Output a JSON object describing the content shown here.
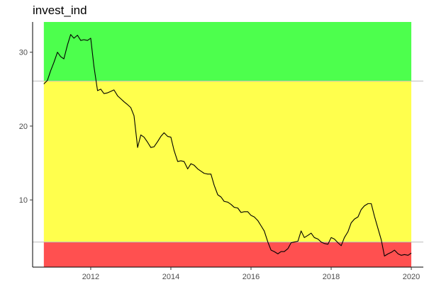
{
  "chart_data": {
    "type": "line",
    "title": "invest_ind",
    "xlabel": "",
    "ylabel": "",
    "xlim": [
      2010.55,
      2020.3
    ],
    "ylim": [
      0.9,
      34.1
    ],
    "x_ticks": [
      2012,
      2014,
      2016,
      2018,
      2020
    ],
    "y_ticks": [
      10,
      20,
      30
    ],
    "grid": false,
    "bands": [
      {
        "from": 0.9,
        "to": 4.3,
        "color": "#ff5050"
      },
      {
        "from": 4.3,
        "to": 26.1,
        "color": "#ffff4d"
      },
      {
        "from": 26.1,
        "to": 34.1,
        "color": "#4dff4d"
      }
    ],
    "band_x_range": [
      2010.83,
      2020.0
    ],
    "reference_lines": [
      4.3,
      26.1
    ],
    "reference_line_color": "#bdbdbd",
    "line_color": "#000000",
    "series": [
      {
        "x": [
          2010.83,
          2010.92,
          2011.0,
          2011.08,
          2011.17,
          2011.25,
          2011.33,
          2011.42,
          2011.5,
          2011.58,
          2011.67,
          2011.75,
          2011.83,
          2011.92,
          2012.0,
          2012.08,
          2012.17,
          2012.25,
          2012.33,
          2012.42,
          2012.5,
          2012.58,
          2012.67,
          2012.75,
          2012.83,
          2012.92,
          2013.0,
          2013.08,
          2013.17,
          2013.25,
          2013.33,
          2013.42,
          2013.5,
          2013.58,
          2013.67,
          2013.75,
          2013.83,
          2013.92,
          2014.0,
          2014.08,
          2014.17,
          2014.25,
          2014.33,
          2014.42,
          2014.5,
          2014.58,
          2014.67,
          2014.75,
          2014.83,
          2014.92,
          2015.0,
          2015.08,
          2015.17,
          2015.25,
          2015.33,
          2015.42,
          2015.5,
          2015.58,
          2015.67,
          2015.75,
          2015.83,
          2015.92,
          2016.0,
          2016.08,
          2016.17,
          2016.25,
          2016.33,
          2016.42,
          2016.5,
          2016.58,
          2016.67,
          2016.75,
          2016.83,
          2016.92,
          2017.0,
          2017.08,
          2017.17,
          2017.25,
          2017.33,
          2017.42,
          2017.5,
          2017.58,
          2017.67,
          2017.75,
          2017.83,
          2017.92,
          2018.0,
          2018.08,
          2018.17,
          2018.25,
          2018.33,
          2018.42,
          2018.5,
          2018.58,
          2018.67,
          2018.75,
          2018.83,
          2018.92,
          2019.0,
          2019.08,
          2019.17,
          2019.25,
          2019.33,
          2019.42,
          2019.5,
          2019.58,
          2019.67,
          2019.75,
          2019.83,
          2019.92,
          2020.0
        ],
        "y": [
          25.7,
          26.2,
          27.5,
          28.6,
          30.0,
          29.4,
          29.1,
          31.0,
          32.4,
          31.9,
          32.3,
          31.6,
          31.7,
          31.6,
          31.9,
          28.1,
          24.8,
          25.0,
          24.4,
          24.5,
          24.7,
          24.9,
          24.1,
          23.7,
          23.3,
          22.9,
          22.5,
          21.4,
          17.1,
          18.8,
          18.5,
          17.8,
          17.1,
          17.2,
          17.9,
          18.6,
          19.1,
          18.6,
          18.5,
          16.7,
          15.2,
          15.3,
          15.2,
          14.2,
          14.9,
          14.7,
          14.2,
          13.9,
          13.6,
          13.5,
          13.5,
          12.0,
          10.7,
          10.4,
          9.8,
          9.7,
          9.4,
          9.0,
          8.9,
          8.3,
          8.4,
          8.4,
          7.9,
          7.7,
          7.2,
          6.5,
          5.8,
          4.3,
          3.2,
          3.0,
          2.7,
          3.0,
          3.0,
          3.4,
          4.2,
          4.3,
          4.4,
          5.8,
          4.9,
          5.2,
          5.5,
          4.9,
          4.7,
          4.3,
          4.1,
          4.0,
          4.9,
          4.7,
          4.2,
          3.8,
          4.9,
          5.7,
          6.9,
          7.4,
          7.7,
          8.7,
          9.2,
          9.5,
          9.5,
          7.8,
          6.1,
          4.6,
          2.4,
          2.7,
          2.9,
          3.2,
          2.7,
          2.5,
          2.6,
          2.5,
          2.8
        ]
      }
    ]
  }
}
